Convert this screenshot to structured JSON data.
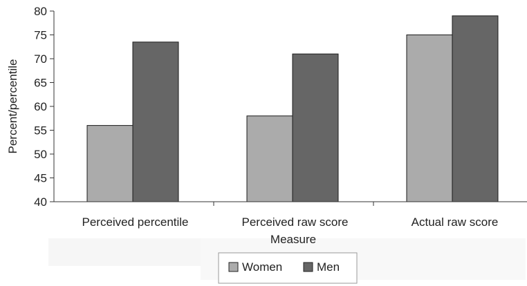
{
  "chart_data": {
    "type": "bar",
    "title": "",
    "xlabel": "Measure",
    "ylabel": "Percent/percentile",
    "categories": [
      "Perceived percentile",
      "Perceived raw score",
      "Actual raw score"
    ],
    "series": [
      {
        "name": "Women",
        "values": [
          56,
          58,
          75
        ],
        "color": "#ababab"
      },
      {
        "name": "Men",
        "values": [
          73.5,
          71,
          79
        ],
        "color": "#666666"
      }
    ],
    "ylim": [
      40,
      80
    ],
    "yticks": [
      40,
      45,
      50,
      55,
      60,
      65,
      70,
      75,
      80
    ],
    "grid": false,
    "legend_position": "bottom"
  }
}
